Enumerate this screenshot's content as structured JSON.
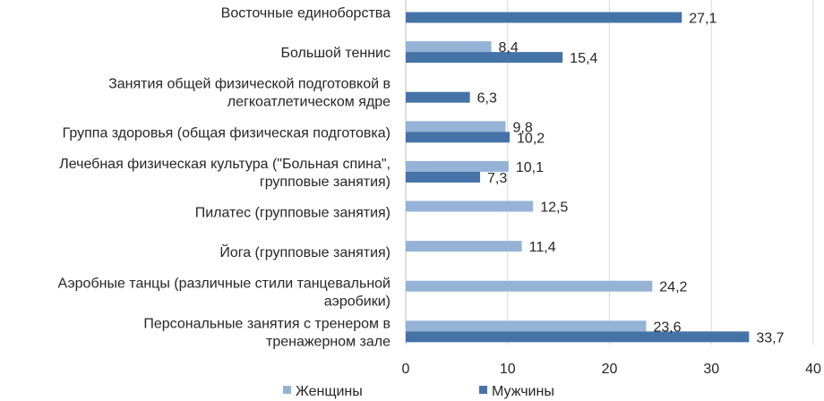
{
  "chart_data": {
    "type": "bar",
    "orientation": "horizontal",
    "categories": [
      [
        "Восточные единоборства"
      ],
      [
        "Большой теннис"
      ],
      [
        "Занятия общей физической подготовкой в",
        "легкоатлетическом ядре"
      ],
      [
        "Группа здоровья (общая физическая подготовка)"
      ],
      [
        "Лечебная физическая культура (\"Больная спина\",",
        "групповые занятия)"
      ],
      [
        "Пилатес (групповые занятия)"
      ],
      [
        "Йога (групповые занятия)"
      ],
      [
        "Аэробные танцы (различные стили танцевальной",
        "аэробики)"
      ],
      [
        "Персональные занятия с тренером в",
        "тренажерном зале"
      ]
    ],
    "series": [
      {
        "name": "Женщины",
        "color": "#95B3D7",
        "values": [
          null,
          8.4,
          null,
          9.8,
          10.1,
          12.5,
          11.4,
          24.2,
          23.6
        ],
        "labels": [
          "",
          "8,4",
          "",
          "9,8",
          "10,1",
          "12,5",
          "11,4",
          "24,2",
          "23,6"
        ]
      },
      {
        "name": "Мужчины",
        "color": "#4573A7",
        "values": [
          27.1,
          15.4,
          6.3,
          10.2,
          7.3,
          null,
          null,
          null,
          33.7
        ],
        "labels": [
          "27,1",
          "15,4",
          "6,3",
          "10,2",
          "7,3",
          "",
          "",
          "",
          "33,7"
        ]
      }
    ],
    "xlim": [
      0,
      40
    ],
    "ticks": [
      "0",
      "10",
      "20",
      "30",
      "40"
    ],
    "tick_values": [
      0,
      10,
      20,
      30,
      40
    ],
    "grid": true,
    "legend_position": "bottom",
    "title": "",
    "xlabel": "",
    "ylabel": ""
  }
}
